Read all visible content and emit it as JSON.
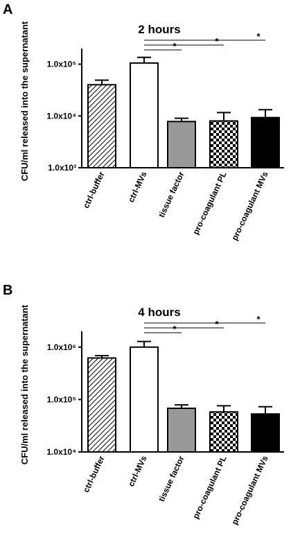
{
  "chart_data": [
    {
      "type": "bar",
      "panel": "A",
      "title": "2 hours",
      "y_label": "CFU/ml released into the supernatant",
      "log_scale": true,
      "categories": [
        "ctrl-buffer",
        "ctrl-MVs",
        "tissue factor",
        "pro-coagulant PL",
        "pro-coagulant MVs"
      ],
      "values": [
        40000,
        105000,
        7800,
        8000,
        9300
      ],
      "errors": [
        9000,
        30000,
        1200,
        3600,
        3900
      ],
      "fills": [
        "hatch",
        "#ffffff",
        "#999999",
        "checker",
        "#000000"
      ],
      "ylim": [
        1000,
        200000
      ],
      "yticks": [
        {
          "value": 1000,
          "label": "1.0x10³"
        },
        {
          "value": 10000,
          "label": "1.0x10⁴"
        },
        {
          "value": 100000,
          "label": "1.0x10⁵"
        }
      ],
      "significance": [
        {
          "from": 1,
          "to": 2,
          "label": "*"
        },
        {
          "from": 1,
          "to": 3,
          "label": "*"
        },
        {
          "from": 1,
          "to": 4,
          "label": "*"
        }
      ]
    },
    {
      "type": "bar",
      "panel": "B",
      "title": "4 hours",
      "y_label": "CFU/ml released into the supernatant",
      "log_scale": true,
      "categories": [
        "ctrl-buffer",
        "ctrl-MVs",
        "tissue factor",
        "pro-coagulant PL",
        "pro-coagulant MVs"
      ],
      "values": [
        620000,
        1000000,
        68000,
        58000,
        53000
      ],
      "errors": [
        70000,
        280000,
        11000,
        18000,
        20000
      ],
      "fills": [
        "hatch",
        "#ffffff",
        "#999999",
        "checker",
        "#000000"
      ],
      "ylim": [
        10000,
        2000000
      ],
      "yticks": [
        {
          "value": 10000,
          "label": "1.0x10⁴"
        },
        {
          "value": 100000,
          "label": "1.0x10⁵"
        },
        {
          "value": 1000000,
          "label": "1.0x10⁶"
        }
      ],
      "significance": [
        {
          "from": 1,
          "to": 2,
          "label": "*"
        },
        {
          "from": 1,
          "to": 3,
          "label": "*"
        },
        {
          "from": 1,
          "to": 4,
          "label": "*"
        }
      ]
    }
  ]
}
